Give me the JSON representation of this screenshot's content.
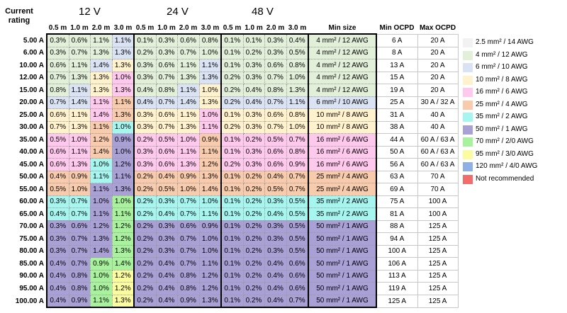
{
  "header": {
    "current_label_line1": "Current",
    "current_label_line2": "rating",
    "voltages": [
      "12 V",
      "24 V",
      "48 V"
    ],
    "lengths": [
      "0.5 m",
      "1.0 m",
      "2.0 m",
      "3.0 m"
    ],
    "min_size": "Min size",
    "min_ocpd": "Min OCPD",
    "max_ocpd": "Max OCPD"
  },
  "colors": {
    "awg14": "#f2f2f2",
    "awg12": "#e2efd9",
    "awg10": "#dae3f3",
    "awg8": "#fff2cc",
    "awg6": "#ffc9ee",
    "awg4": "#f8cbad",
    "awg2": "#a7f5ef",
    "awg1": "#a9a0d6",
    "awg2_0": "#a9f29d",
    "awg3_0": "#fbfb9f",
    "awg4_0": "#8fb0e6",
    "not_recommended": "#f26c6c"
  },
  "legend": [
    {
      "label": "2.5 mm² / 14 AWG",
      "color": "awg14"
    },
    {
      "label": "4 mm² / 12 AWG",
      "color": "awg12"
    },
    {
      "label": "6 mm² / 10 AWG",
      "color": "awg10"
    },
    {
      "label": "10 mm² / 8 AWG",
      "color": "awg8"
    },
    {
      "label": "16 mm² / 6 AWG",
      "color": "awg6"
    },
    {
      "label": "25 mm² / 4 AWG",
      "color": "awg4"
    },
    {
      "label": "35 mm² / 2 AWG",
      "color": "awg2"
    },
    {
      "label": "50 mm² / 1 AWG",
      "color": "awg1"
    },
    {
      "label": "70 mm² / 2/0 AWG",
      "color": "awg2_0"
    },
    {
      "label": "95 mm² / 3/0 AWG",
      "color": "awg3_0"
    },
    {
      "label": "120 mm² / 4/0 AWG",
      "color": "awg4_0"
    },
    {
      "label": "Not recommended",
      "color": "not_recommended"
    }
  ],
  "rows": [
    {
      "rating": "5.00 A",
      "v12": [
        "0.3%",
        "0.6%",
        "1.1%",
        "1.1%"
      ],
      "c12": [
        "awg12",
        "awg12",
        "awg12",
        "awg10"
      ],
      "v24": [
        "0.1%",
        "0.3%",
        "0.6%",
        "0.8%"
      ],
      "c24": [
        "awg12",
        "awg12",
        "awg12",
        "awg12"
      ],
      "v48": [
        "0.1%",
        "0.1%",
        "0.3%",
        "0.4%"
      ],
      "c48": [
        "awg12",
        "awg12",
        "awg12",
        "awg12"
      ],
      "min_size": "4 mm² / 12 AWG",
      "size_color": "awg12",
      "min_ocpd": "6 A",
      "max_ocpd": "20 A"
    },
    {
      "rating": "6.00 A",
      "v12": [
        "0.3%",
        "0.7%",
        "1.3%",
        "1.3%"
      ],
      "c12": [
        "awg12",
        "awg12",
        "awg12",
        "awg10"
      ],
      "v24": [
        "0.2%",
        "0.3%",
        "0.7%",
        "1.0%"
      ],
      "c24": [
        "awg12",
        "awg12",
        "awg12",
        "awg12"
      ],
      "v48": [
        "0.1%",
        "0.2%",
        "0.3%",
        "0.5%"
      ],
      "c48": [
        "awg12",
        "awg12",
        "awg12",
        "awg12"
      ],
      "min_size": "4 mm² / 12 AWG",
      "size_color": "awg12",
      "min_ocpd": "8 A",
      "max_ocpd": "20 A"
    },
    {
      "rating": "10.00 A",
      "v12": [
        "0.6%",
        "1.1%",
        "1.4%",
        "1.3%"
      ],
      "c12": [
        "awg12",
        "awg12",
        "awg10",
        "awg8"
      ],
      "v24": [
        "0.3%",
        "0.6%",
        "1.1%",
        "1.1%"
      ],
      "c24": [
        "awg12",
        "awg12",
        "awg12",
        "awg10"
      ],
      "v48": [
        "0.1%",
        "0.3%",
        "0.6%",
        "0.8%"
      ],
      "c48": [
        "awg12",
        "awg12",
        "awg12",
        "awg12"
      ],
      "min_size": "4 mm² / 12 AWG",
      "size_color": "awg12",
      "min_ocpd": "13 A",
      "max_ocpd": "20 A"
    },
    {
      "rating": "12.00 A",
      "v12": [
        "0.7%",
        "1.3%",
        "1.3%",
        "1.0%"
      ],
      "c12": [
        "awg12",
        "awg12",
        "awg8",
        "awg6"
      ],
      "v24": [
        "0.3%",
        "0.7%",
        "1.3%",
        "1.3%"
      ],
      "c24": [
        "awg12",
        "awg12",
        "awg12",
        "awg10"
      ],
      "v48": [
        "0.2%",
        "0.3%",
        "0.7%",
        "1.0%"
      ],
      "c48": [
        "awg12",
        "awg12",
        "awg12",
        "awg12"
      ],
      "min_size": "4 mm² / 12 AWG",
      "size_color": "awg12",
      "min_ocpd": "15 A",
      "max_ocpd": "20 A"
    },
    {
      "rating": "15.00 A",
      "v12": [
        "0.8%",
        "1.1%",
        "1.3%",
        "1.3%"
      ],
      "c12": [
        "awg12",
        "awg10",
        "awg8",
        "awg6"
      ],
      "v24": [
        "0.4%",
        "0.8%",
        "1.1%",
        "1.0%"
      ],
      "c24": [
        "awg12",
        "awg12",
        "awg10",
        "awg8"
      ],
      "v48": [
        "0.2%",
        "0.4%",
        "0.8%",
        "1.3%"
      ],
      "c48": [
        "awg12",
        "awg12",
        "awg12",
        "awg12"
      ],
      "min_size": "4 mm² / 12 AWG",
      "size_color": "awg12",
      "min_ocpd": "19 A",
      "max_ocpd": "20 A"
    },
    {
      "rating": "20.00 A",
      "v12": [
        "0.7%",
        "1.4%",
        "1.1%",
        "1.1%"
      ],
      "c12": [
        "awg10",
        "awg10",
        "awg6",
        "awg4"
      ],
      "v24": [
        "0.4%",
        "0.7%",
        "1.4%",
        "1.3%"
      ],
      "c24": [
        "awg10",
        "awg10",
        "awg10",
        "awg8"
      ],
      "v48": [
        "0.2%",
        "0.4%",
        "0.7%",
        "1.1%"
      ],
      "c48": [
        "awg10",
        "awg10",
        "awg10",
        "awg10"
      ],
      "min_size": "6 mm² / 10 AWG",
      "size_color": "awg10",
      "min_ocpd": "25 A",
      "max_ocpd": "30 A / 32 A"
    },
    {
      "rating": "25.00 A",
      "v12": [
        "0.6%",
        "1.1%",
        "1.4%",
        "1.3%"
      ],
      "c12": [
        "awg8",
        "awg8",
        "awg6",
        "awg4"
      ],
      "v24": [
        "0.3%",
        "0.6%",
        "1.1%",
        "1.0%"
      ],
      "c24": [
        "awg8",
        "awg8",
        "awg8",
        "awg6"
      ],
      "v48": [
        "0.1%",
        "0.3%",
        "0.6%",
        "0.8%"
      ],
      "c48": [
        "awg8",
        "awg8",
        "awg8",
        "awg8"
      ],
      "min_size": "10 mm² / 8 AWG",
      "size_color": "awg8",
      "min_ocpd": "31 A",
      "max_ocpd": "40 A"
    },
    {
      "rating": "30.00 A",
      "v12": [
        "0.7%",
        "1.3%",
        "1.1%",
        "1.0%"
      ],
      "c12": [
        "awg8",
        "awg8",
        "awg4",
        "awg2"
      ],
      "v24": [
        "0.3%",
        "0.7%",
        "1.3%",
        "1.1%"
      ],
      "c24": [
        "awg8",
        "awg8",
        "awg8",
        "awg6"
      ],
      "v48": [
        "0.2%",
        "0.3%",
        "0.7%",
        "1.0%"
      ],
      "c48": [
        "awg8",
        "awg8",
        "awg8",
        "awg8"
      ],
      "min_size": "10 mm² / 8 AWG",
      "size_color": "awg8",
      "min_ocpd": "38 A",
      "max_ocpd": "40 A"
    },
    {
      "rating": "35.00 A",
      "v12": [
        "0.5%",
        "1.0%",
        "1.2%",
        "0.9%"
      ],
      "c12": [
        "awg6",
        "awg6",
        "awg4",
        "awg1"
      ],
      "v24": [
        "0.2%",
        "0.5%",
        "1.0%",
        "0.9%"
      ],
      "c24": [
        "awg6",
        "awg6",
        "awg6",
        "awg4"
      ],
      "v48": [
        "0.1%",
        "0.2%",
        "0.5%",
        "0.7%"
      ],
      "c48": [
        "awg6",
        "awg6",
        "awg6",
        "awg6"
      ],
      "min_size": "16 mm² / 6 AWG",
      "size_color": "awg6",
      "min_ocpd": "44 A",
      "max_ocpd": "60 A / 63 A"
    },
    {
      "rating": "40.00 A",
      "v12": [
        "0.6%",
        "1.1%",
        "1.4%",
        "1.0%"
      ],
      "c12": [
        "awg6",
        "awg6",
        "awg4",
        "awg1"
      ],
      "v24": [
        "0.3%",
        "0.6%",
        "1.1%",
        "1.1%"
      ],
      "c24": [
        "awg6",
        "awg6",
        "awg6",
        "awg4"
      ],
      "v48": [
        "0.1%",
        "0.3%",
        "0.6%",
        "0.8%"
      ],
      "c48": [
        "awg6",
        "awg6",
        "awg6",
        "awg6"
      ],
      "min_size": "16 mm² / 6 AWG",
      "size_color": "awg6",
      "min_ocpd": "50 A",
      "max_ocpd": "60 A / 63 A"
    },
    {
      "rating": "45.00 A",
      "v12": [
        "0.6%",
        "1.3%",
        "1.0%",
        "1.2%"
      ],
      "c12": [
        "awg6",
        "awg6",
        "awg2",
        "awg1"
      ],
      "v24": [
        "0.3%",
        "0.6%",
        "1.3%",
        "1.2%"
      ],
      "c24": [
        "awg6",
        "awg6",
        "awg6",
        "awg4"
      ],
      "v48": [
        "0.2%",
        "0.3%",
        "0.6%",
        "0.9%"
      ],
      "c48": [
        "awg6",
        "awg6",
        "awg6",
        "awg6"
      ],
      "min_size": "16 mm² / 6 AWG",
      "size_color": "awg6",
      "min_ocpd": "56 A",
      "max_ocpd": "60 A / 63 A"
    },
    {
      "rating": "50.00 A",
      "v12": [
        "0.4%",
        "0.9%",
        "1.1%",
        "1.1%"
      ],
      "c12": [
        "awg4",
        "awg4",
        "awg2",
        "awg1"
      ],
      "v24": [
        "0.2%",
        "0.4%",
        "0.9%",
        "1.3%"
      ],
      "c24": [
        "awg4",
        "awg4",
        "awg4",
        "awg4"
      ],
      "v48": [
        "0.1%",
        "0.2%",
        "0.4%",
        "0.7%"
      ],
      "c48": [
        "awg4",
        "awg4",
        "awg4",
        "awg4"
      ],
      "min_size": "25 mm² / 4 AWG",
      "size_color": "awg4",
      "min_ocpd": "63 A",
      "max_ocpd": "70 A"
    },
    {
      "rating": "55.00 A",
      "v12": [
        "0.5%",
        "1.0%",
        "1.1%",
        "1.3%"
      ],
      "c12": [
        "awg4",
        "awg4",
        "awg1",
        "awg1"
      ],
      "v24": [
        "0.2%",
        "0.5%",
        "1.0%",
        "1.4%"
      ],
      "c24": [
        "awg4",
        "awg4",
        "awg4",
        "awg4"
      ],
      "v48": [
        "0.1%",
        "0.2%",
        "0.5%",
        "0.7%"
      ],
      "c48": [
        "awg4",
        "awg4",
        "awg4",
        "awg4"
      ],
      "min_size": "25 mm² / 4 AWG",
      "size_color": "awg4",
      "min_ocpd": "69 A",
      "max_ocpd": "70 A"
    },
    {
      "rating": "60.00 A",
      "v12": [
        "0.3%",
        "0.7%",
        "1.0%",
        "1.0%"
      ],
      "c12": [
        "awg2",
        "awg2",
        "awg1",
        "awg2_0"
      ],
      "v24": [
        "0.2%",
        "0.3%",
        "0.7%",
        "1.0%"
      ],
      "c24": [
        "awg2",
        "awg2",
        "awg2",
        "awg2"
      ],
      "v48": [
        "0.1%",
        "0.2%",
        "0.3%",
        "0.5%"
      ],
      "c48": [
        "awg2",
        "awg2",
        "awg2",
        "awg2"
      ],
      "min_size": "35 mm² / 2 AWG",
      "size_color": "awg2",
      "min_ocpd": "75 A",
      "max_ocpd": "100 A"
    },
    {
      "rating": "65.00 A",
      "v12": [
        "0.4%",
        "0.7%",
        "1.1%",
        "1.1%"
      ],
      "c12": [
        "awg2",
        "awg2",
        "awg1",
        "awg2_0"
      ],
      "v24": [
        "0.2%",
        "0.4%",
        "0.7%",
        "1.1%"
      ],
      "c24": [
        "awg2",
        "awg2",
        "awg2",
        "awg2"
      ],
      "v48": [
        "0.1%",
        "0.2%",
        "0.4%",
        "0.5%"
      ],
      "c48": [
        "awg2",
        "awg2",
        "awg2",
        "awg2"
      ],
      "min_size": "35 mm² / 2 AWG",
      "size_color": "awg2",
      "min_ocpd": "81 A",
      "max_ocpd": "100 A"
    },
    {
      "rating": "70.00 A",
      "v12": [
        "0.3%",
        "0.6%",
        "1.2%",
        "1.2%"
      ],
      "c12": [
        "awg1",
        "awg1",
        "awg1",
        "awg2_0"
      ],
      "v24": [
        "0.2%",
        "0.3%",
        "0.6%",
        "0.9%"
      ],
      "c24": [
        "awg1",
        "awg1",
        "awg1",
        "awg1"
      ],
      "v48": [
        "0.1%",
        "0.2%",
        "0.3%",
        "0.5%"
      ],
      "c48": [
        "awg1",
        "awg1",
        "awg1",
        "awg1"
      ],
      "min_size": "50 mm² / 1 AWG",
      "size_color": "awg1",
      "min_ocpd": "88 A",
      "max_ocpd": "125 A"
    },
    {
      "rating": "75.00 A",
      "v12": [
        "0.3%",
        "0.7%",
        "1.3%",
        "1.2%"
      ],
      "c12": [
        "awg1",
        "awg1",
        "awg1",
        "awg2_0"
      ],
      "v24": [
        "0.2%",
        "0.3%",
        "0.7%",
        "1.0%"
      ],
      "c24": [
        "awg1",
        "awg1",
        "awg1",
        "awg1"
      ],
      "v48": [
        "0.1%",
        "0.2%",
        "0.3%",
        "0.5%"
      ],
      "c48": [
        "awg1",
        "awg1",
        "awg1",
        "awg1"
      ],
      "min_size": "50 mm² / 1 AWG",
      "size_color": "awg1",
      "min_ocpd": "94 A",
      "max_ocpd": "125 A"
    },
    {
      "rating": "80.00 A",
      "v12": [
        "0.3%",
        "0.7%",
        "1.4%",
        "1.3%"
      ],
      "c12": [
        "awg1",
        "awg1",
        "awg1",
        "awg2_0"
      ],
      "v24": [
        "0.2%",
        "0.3%",
        "0.7%",
        "1.0%"
      ],
      "c24": [
        "awg1",
        "awg1",
        "awg1",
        "awg1"
      ],
      "v48": [
        "0.1%",
        "0.2%",
        "0.3%",
        "0.5%"
      ],
      "c48": [
        "awg1",
        "awg1",
        "awg1",
        "awg1"
      ],
      "min_size": "50 mm² / 1 AWG",
      "size_color": "awg1",
      "min_ocpd": "100 A",
      "max_ocpd": "125 A"
    },
    {
      "rating": "85.00 A",
      "v12": [
        "0.4%",
        "0.7%",
        "0.9%",
        "1.4%"
      ],
      "c12": [
        "awg1",
        "awg1",
        "awg2_0",
        "awg2_0"
      ],
      "v24": [
        "0.2%",
        "0.4%",
        "0.7%",
        "1.1%"
      ],
      "c24": [
        "awg1",
        "awg1",
        "awg1",
        "awg1"
      ],
      "v48": [
        "0.1%",
        "0.2%",
        "0.4%",
        "0.6%"
      ],
      "c48": [
        "awg1",
        "awg1",
        "awg1",
        "awg1"
      ],
      "min_size": "50 mm² / 1 AWG",
      "size_color": "awg1",
      "min_ocpd": "106 A",
      "max_ocpd": "125 A"
    },
    {
      "rating": "90.00 A",
      "v12": [
        "0.4%",
        "0.8%",
        "1.0%",
        "1.2%"
      ],
      "c12": [
        "awg1",
        "awg1",
        "awg2_0",
        "awg3_0"
      ],
      "v24": [
        "0.2%",
        "0.4%",
        "0.8%",
        "1.2%"
      ],
      "c24": [
        "awg1",
        "awg1",
        "awg1",
        "awg1"
      ],
      "v48": [
        "0.1%",
        "0.2%",
        "0.4%",
        "0.6%"
      ],
      "c48": [
        "awg1",
        "awg1",
        "awg1",
        "awg1"
      ],
      "min_size": "50 mm² / 1 AWG",
      "size_color": "awg1",
      "min_ocpd": "113 A",
      "max_ocpd": "125 A"
    },
    {
      "rating": "95.00 A",
      "v12": [
        "0.4%",
        "0.8%",
        "1.0%",
        "1.2%"
      ],
      "c12": [
        "awg1",
        "awg1",
        "awg2_0",
        "awg3_0"
      ],
      "v24": [
        "0.2%",
        "0.4%",
        "0.8%",
        "1.2%"
      ],
      "c24": [
        "awg1",
        "awg1",
        "awg1",
        "awg1"
      ],
      "v48": [
        "0.1%",
        "0.2%",
        "0.4%",
        "0.6%"
      ],
      "c48": [
        "awg1",
        "awg1",
        "awg1",
        "awg1"
      ],
      "min_size": "50 mm² / 1 AWG",
      "size_color": "awg1",
      "min_ocpd": "119 A",
      "max_ocpd": "125 A"
    },
    {
      "rating": "100.00 A",
      "v12": [
        "0.4%",
        "0.9%",
        "1.1%",
        "1.3%"
      ],
      "c12": [
        "awg1",
        "awg1",
        "awg2_0",
        "awg3_0"
      ],
      "v24": [
        "0.2%",
        "0.4%",
        "0.9%",
        "1.3%"
      ],
      "c24": [
        "awg1",
        "awg1",
        "awg1",
        "awg1"
      ],
      "v48": [
        "0.1%",
        "0.2%",
        "0.4%",
        "0.7%"
      ],
      "c48": [
        "awg1",
        "awg1",
        "awg1",
        "awg1"
      ],
      "min_size": "50 mm² / 1 AWG",
      "size_color": "awg1",
      "min_ocpd": "125 A",
      "max_ocpd": "125 A"
    }
  ]
}
